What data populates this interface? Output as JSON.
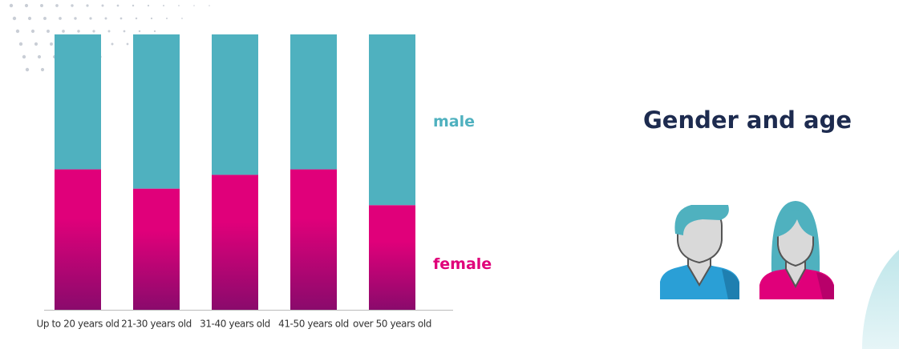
{
  "chart_data": {
    "type": "stacked_bar",
    "title": "Gender and age",
    "categories": [
      "Up to 20 years old",
      "21-30 years old",
      "31-40 years old",
      "41-50 years old",
      "over 50 years old"
    ],
    "series": [
      {
        "name": "female",
        "color": "#e0007a",
        "values": [
          51,
          44,
          49,
          51,
          38
        ]
      },
      {
        "name": "male",
        "color": "#4fb1bf",
        "values": [
          49,
          56,
          51,
          49,
          62
        ]
      }
    ],
    "ylim": [
      0,
      100
    ]
  }
}
